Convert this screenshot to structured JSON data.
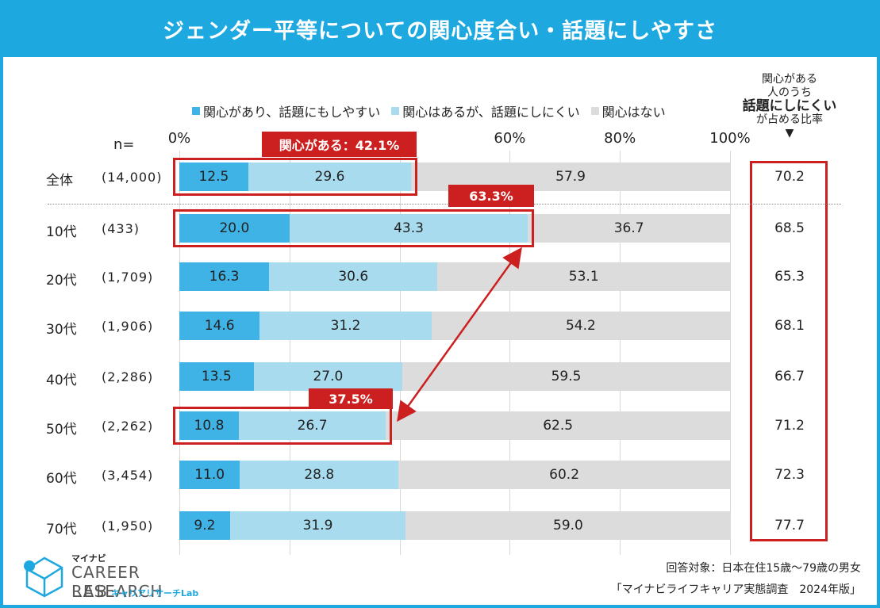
{
  "title": "ジェンダー平等についての関心度合い・話題にしやすさ",
  "colors": {
    "dark": "#3fb2e6",
    "light": "#a8dbee",
    "none": "#dcdcdc",
    "accent": "#cc1f1f",
    "brand": "#1ea8e0"
  },
  "legend": [
    {
      "label": "関心があり、話題にもしやすい",
      "color": "#3fb2e6"
    },
    {
      "label": "関心はあるが、話題にしにくい",
      "color": "#a8dbee"
    },
    {
      "label": "関心はない",
      "color": "#dcdcdc"
    }
  ],
  "right_header": {
    "line1": "関心がある",
    "line2": "人のうち",
    "line3": "話題にしにくい",
    "line4": "が占める比率",
    "arrow": "▼"
  },
  "n_label": "n=",
  "chart_data": {
    "type": "bar",
    "orientation": "horizontal-stacked-100",
    "title": "ジェンダー平等についての関心度合い・話題にしやすさ",
    "xlim": [
      0,
      100
    ],
    "x_ticks": [
      "0%",
      "60%",
      "80%",
      "100%"
    ],
    "x_tick_values": [
      0,
      60,
      80,
      100
    ],
    "categories": [
      "全体",
      "10代",
      "20代",
      "30代",
      "40代",
      "50代",
      "60代",
      "70代"
    ],
    "n": [
      "(14,000)",
      "(433)",
      "(1,709)",
      "(1,906)",
      "(2,286)",
      "(2,262)",
      "(3,454)",
      "(1,950)"
    ],
    "series": [
      {
        "name": "関心があり、話題にもしやすい",
        "values": [
          12.5,
          20.0,
          16.3,
          14.6,
          13.5,
          10.8,
          11.0,
          9.2
        ]
      },
      {
        "name": "関心はあるが、話題にしにくい",
        "values": [
          29.6,
          43.3,
          30.6,
          31.2,
          27.0,
          26.7,
          28.8,
          31.9
        ]
      },
      {
        "name": "関心はない",
        "values": [
          57.9,
          36.7,
          53.1,
          54.2,
          59.5,
          62.5,
          60.2,
          59.0
        ]
      }
    ],
    "ratio_hard_to_discuss": [
      70.2,
      68.5,
      65.3,
      68.1,
      66.7,
      71.2,
      72.3,
      77.7
    ],
    "annotations": [
      {
        "row": 0,
        "text": "関心がある：42.1%"
      },
      {
        "row": 1,
        "text": "63.3%"
      },
      {
        "row": 5,
        "text": "37.5%"
      }
    ]
  },
  "logo": {
    "brand_small": "マイナビ",
    "line1": "CAREER RESEARCH",
    "line2": "LAB",
    "kana": "キャリアリサーチLab"
  },
  "footnotes": [
    "回答対象：日本在住15歳～79歳の男女",
    "「マイナビライフキャリア実態調査　2024年版」"
  ]
}
